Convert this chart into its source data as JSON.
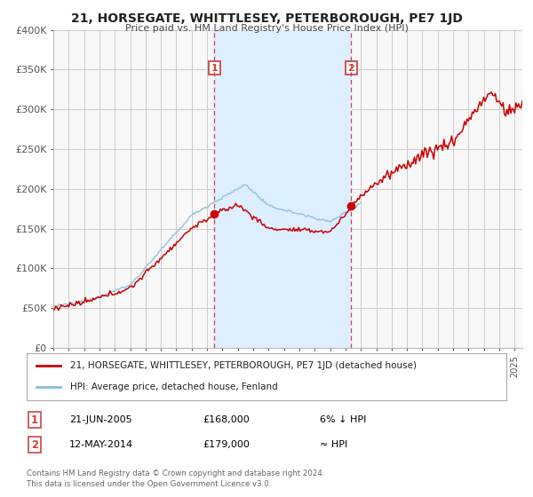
{
  "title": "21, HORSEGATE, WHITTLESEY, PETERBOROUGH, PE7 1JD",
  "subtitle": "Price paid vs. HM Land Registry's House Price Index (HPI)",
  "legend_line1": "21, HORSEGATE, WHITTLESEY, PETERBOROUGH, PE7 1JD (detached house)",
  "legend_line2": "HPI: Average price, detached house, Fenland",
  "annotation1_label": "1",
  "annotation1_date": "21-JUN-2005",
  "annotation1_price": "£168,000",
  "annotation1_pct": "6% ↓ HPI",
  "annotation2_label": "2",
  "annotation2_date": "12-MAY-2014",
  "annotation2_price": "£179,000",
  "annotation2_pct": "≈ HPI",
  "footnote1": "Contains HM Land Registry data © Crown copyright and database right 2024.",
  "footnote2": "This data is licensed under the Open Government Licence v3.0.",
  "xmin": 1995,
  "xmax": 2025.5,
  "ymin": 0,
  "ymax": 400000,
  "yticks": [
    0,
    50000,
    100000,
    150000,
    200000,
    250000,
    300000,
    350000,
    400000
  ],
  "ytick_labels": [
    "£0",
    "£50K",
    "£100K",
    "£150K",
    "£200K",
    "£250K",
    "£300K",
    "£350K",
    "£400K"
  ],
  "red_color": "#cc0000",
  "blue_color": "#88bbdd",
  "dashed_color": "#cc4444",
  "shade_color": "#ddeeff",
  "point1_x": 2005.47,
  "point1_y": 168000,
  "point2_x": 2014.37,
  "point2_y": 179000,
  "bg_color": "#ffffff",
  "grid_color": "#cccccc",
  "plot_bg": "#f8f8f8"
}
